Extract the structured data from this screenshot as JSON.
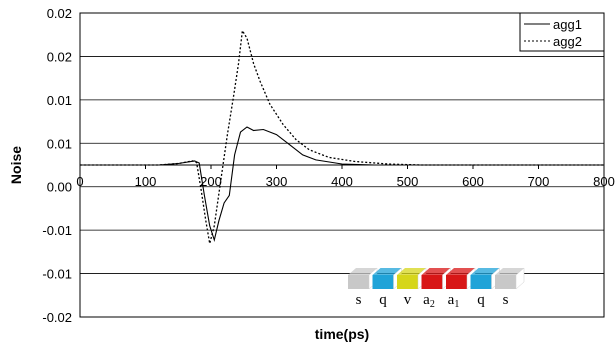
{
  "chart_data": {
    "type": "line",
    "xlabel": "time(ps)",
    "ylabel": "Noise",
    "xlim": [
      0,
      800
    ],
    "ylim": [
      -0.03,
      0.03
    ],
    "x_ticks": [
      "0",
      "100",
      "200",
      "300",
      "400",
      "500",
      "600",
      "700",
      "800"
    ],
    "y_ticks": [
      "0.02",
      "0.02",
      "0.01",
      "0.01",
      "0.00",
      "-0.01",
      "-0.01",
      "-0.02"
    ],
    "grid": "horizontal",
    "legend_position": "top-right",
    "series": [
      {
        "name": "agg1",
        "style": "solid",
        "points": [
          [
            0,
            0
          ],
          [
            120,
            0
          ],
          [
            150,
            0.0003
          ],
          [
            175,
            0.0008
          ],
          [
            182,
            0.0004
          ],
          [
            190,
            -0.006
          ],
          [
            198,
            -0.012
          ],
          [
            205,
            -0.0148
          ],
          [
            212,
            -0.011
          ],
          [
            220,
            -0.0075
          ],
          [
            228,
            -0.006
          ],
          [
            236,
            0.002
          ],
          [
            245,
            0.0065
          ],
          [
            255,
            0.0075
          ],
          [
            265,
            0.0068
          ],
          [
            280,
            0.007
          ],
          [
            300,
            0.006
          ],
          [
            320,
            0.004
          ],
          [
            340,
            0.002
          ],
          [
            360,
            0.001
          ],
          [
            400,
            0.0002
          ],
          [
            450,
            0
          ],
          [
            500,
            0
          ],
          [
            800,
            0
          ]
        ]
      },
      {
        "name": "agg2",
        "style": "dotted",
        "points": [
          [
            0,
            0
          ],
          [
            120,
            0
          ],
          [
            150,
            0.0003
          ],
          [
            172,
            0.0008
          ],
          [
            178,
            0.0005
          ],
          [
            185,
            -0.005
          ],
          [
            192,
            -0.011
          ],
          [
            198,
            -0.0155
          ],
          [
            205,
            -0.012
          ],
          [
            215,
            -0.003
          ],
          [
            225,
            0.006
          ],
          [
            235,
            0.014
          ],
          [
            242,
            0.02
          ],
          [
            248,
            0.0265
          ],
          [
            255,
            0.025
          ],
          [
            265,
            0.02
          ],
          [
            275,
            0.0165
          ],
          [
            290,
            0.012
          ],
          [
            310,
            0.008
          ],
          [
            330,
            0.005
          ],
          [
            350,
            0.003
          ],
          [
            380,
            0.0015
          ],
          [
            420,
            0.0007
          ],
          [
            470,
            0.0002
          ],
          [
            520,
            0
          ],
          [
            800,
            0
          ]
        ]
      }
    ],
    "annotation_blocks": [
      {
        "label": "s",
        "sub": "",
        "color": "#c8c8c8"
      },
      {
        "label": "q",
        "sub": "",
        "color": "#1fa3d8"
      },
      {
        "label": "v",
        "sub": "",
        "color": "#d6d61a"
      },
      {
        "label": "a",
        "sub": "2",
        "color": "#d81616"
      },
      {
        "label": "a",
        "sub": "1",
        "color": "#d81616"
      },
      {
        "label": "q",
        "sub": "",
        "color": "#1fa3d8"
      },
      {
        "label": "s",
        "sub": "",
        "color": "#c8c8c8"
      }
    ]
  }
}
